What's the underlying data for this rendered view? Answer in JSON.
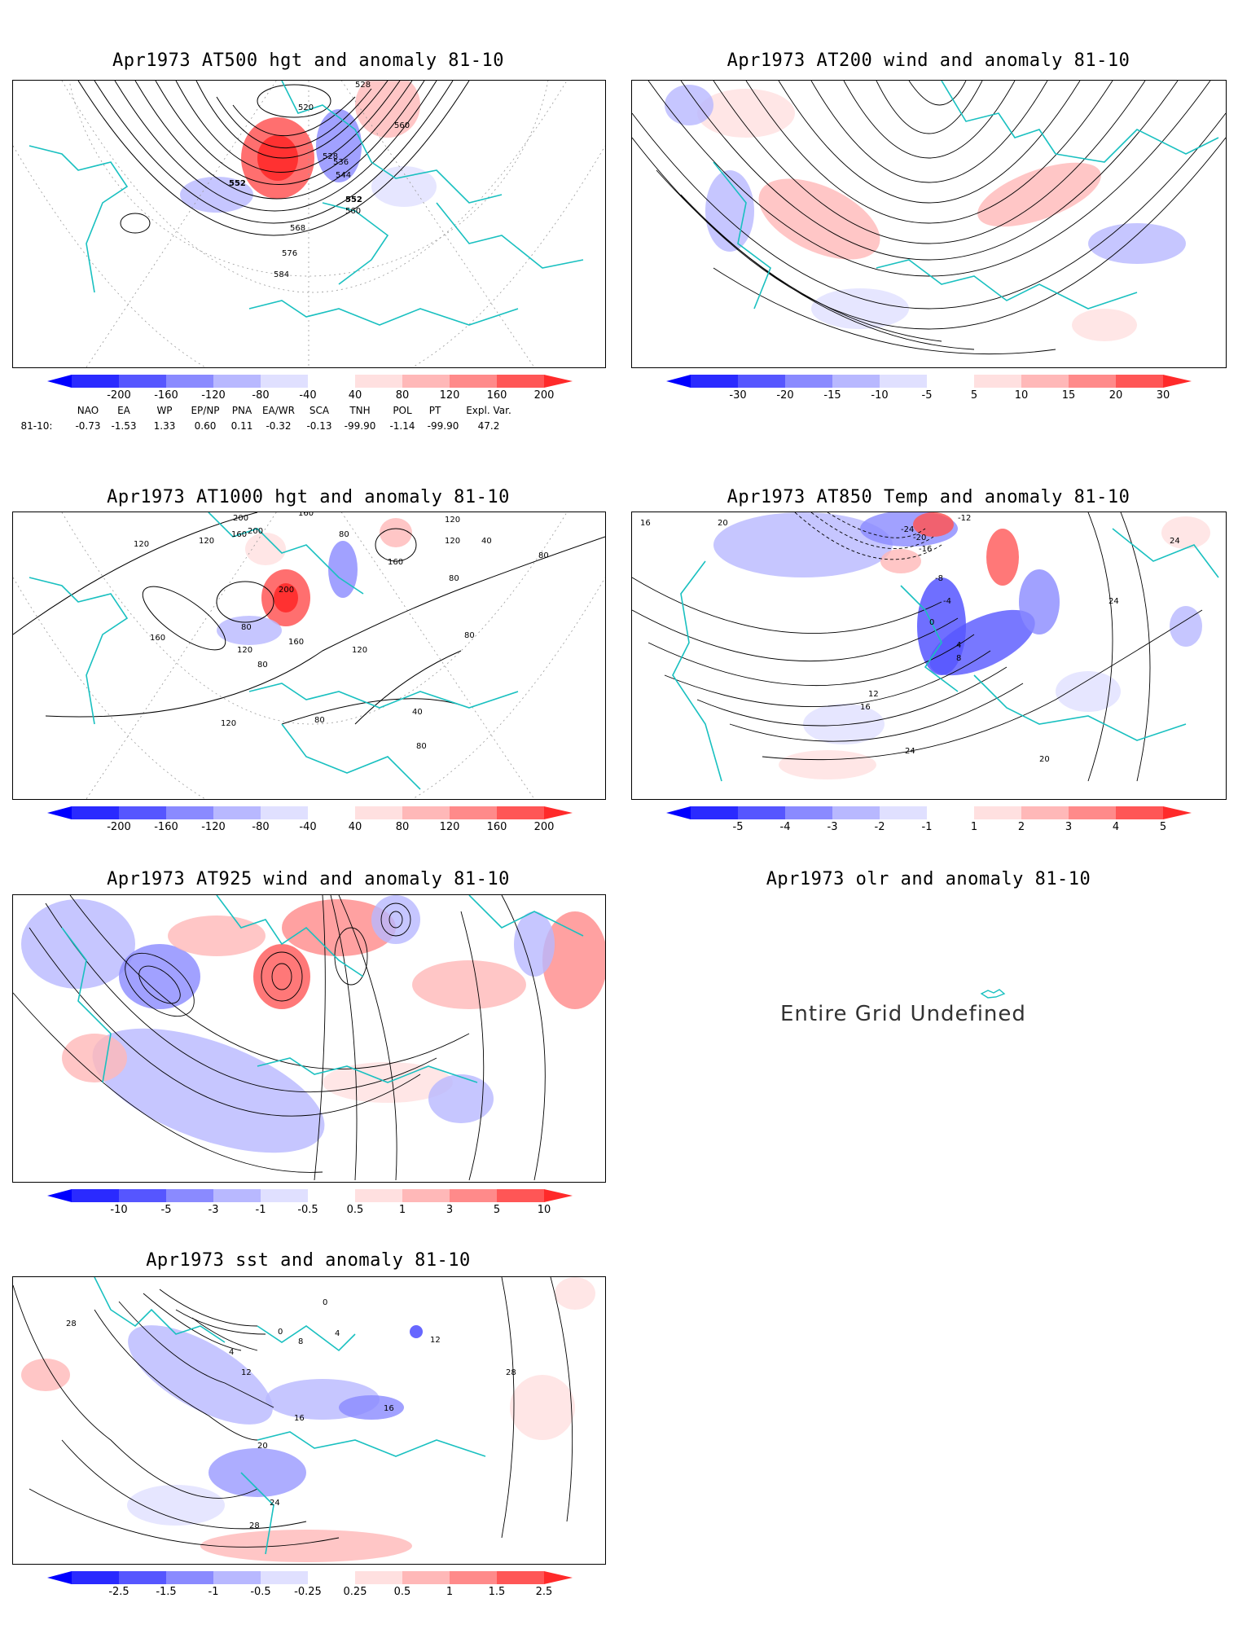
{
  "panels": {
    "p1": {
      "title": "Apr1973 AT500 hgt and anomaly 81-10",
      "contour_labels": [
        "528",
        "520",
        "560",
        "536",
        "544",
        "552",
        "552",
        "560",
        "568",
        "576",
        "584",
        "528"
      ],
      "colorbar": [
        "-200",
        "-160",
        "-120",
        "-80",
        "-40",
        "40",
        "80",
        "120",
        "160",
        "200"
      ]
    },
    "p2": {
      "title": "Apr1973 AT200 wind and anomaly 81-10",
      "colorbar": [
        "-30",
        "-20",
        "-15",
        "-10",
        "-5",
        "5",
        "10",
        "15",
        "20",
        "30"
      ]
    },
    "p3": {
      "title": "Apr1973 AT1000 hgt and anomaly 81-10",
      "contour_labels": [
        "120",
        "200",
        "160",
        "200",
        "160",
        "120",
        "120",
        "80",
        "120",
        "40",
        "80",
        "160",
        "80",
        "200",
        "80",
        "120",
        "160",
        "160",
        "120",
        "80",
        "80",
        "40",
        "80",
        "120",
        "80"
      ],
      "colorbar": [
        "-200",
        "-160",
        "-120",
        "-80",
        "-40",
        "40",
        "80",
        "120",
        "160",
        "200"
      ]
    },
    "p4": {
      "title": "Apr1973 AT850 Temp and anomaly 81-10",
      "contour_labels": [
        "16",
        "20",
        "-24",
        "-12",
        "-20",
        "-16",
        "24",
        "-8",
        "-4",
        "24",
        "0",
        "4",
        "8",
        "12",
        "16",
        "24",
        "20"
      ],
      "colorbar": [
        "-5",
        "-4",
        "-3",
        "-2",
        "-1",
        "1",
        "2",
        "3",
        "4",
        "5"
      ]
    },
    "p5": {
      "title": "Apr1973 AT925 wind and anomaly 81-10",
      "colorbar": [
        "-10",
        "-5",
        "-3",
        "-1",
        "-0.5",
        "0.5",
        "1",
        "3",
        "5",
        "10"
      ]
    },
    "p6": {
      "title": "Apr1973 olr and anomaly 81-10",
      "message": "Entire Grid Undefined"
    },
    "p7": {
      "title": "Apr1973 sst and anomaly 81-10",
      "contour_labels": [
        "28",
        "0",
        "4",
        "12",
        "0",
        "8",
        "4",
        "12",
        "16",
        "16",
        "20",
        "24",
        "28",
        "28"
      ],
      "colorbar": [
        "-2.5",
        "-1.5",
        "-1",
        "-0.5",
        "-0.25",
        "0.25",
        "0.5",
        "1",
        "1.5",
        "2.5"
      ]
    }
  },
  "teleconnections": {
    "headers": [
      "NAO",
      "EA",
      "WP",
      "EP/NP",
      "PNA",
      "EA/WR",
      "SCA",
      "TNH",
      "POL",
      "PT",
      "Expl. Var."
    ],
    "row_label": "81-10:",
    "values": [
      "-0.73",
      "-1.53",
      "1.33",
      "0.60",
      "0.11",
      "-0.32",
      "-0.13",
      "-99.90",
      "-1.14",
      "-99.90",
      "47.2"
    ]
  },
  "colors": {
    "neg": [
      "#2a2aff",
      "#5656ff",
      "#8a8aff",
      "#b8b8ff",
      "#e0e0ff"
    ],
    "pos": [
      "#ffe0e0",
      "#ffb8b8",
      "#ff8a8a",
      "#ff5656",
      "#ff2a2a"
    ],
    "coast": "#19c0c0"
  }
}
